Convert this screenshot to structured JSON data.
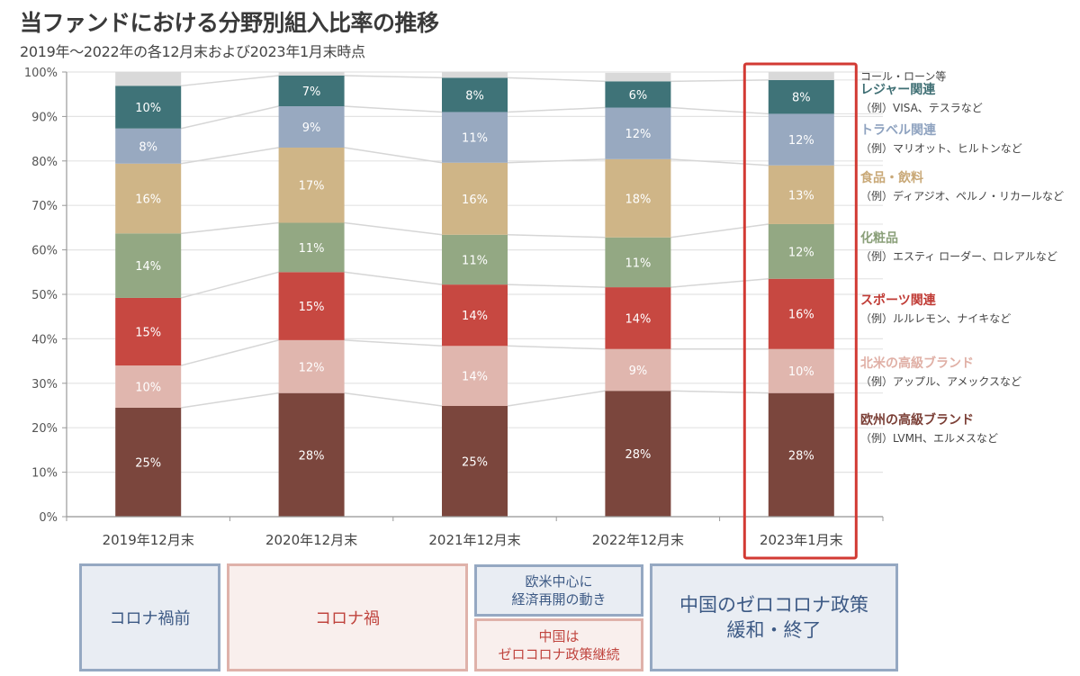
{
  "header": {
    "title": "当ファンドにおける分野別組入比率の推移",
    "subtitle": "2019年～2022年の各12月末および2023年1月末時点"
  },
  "chart_data": {
    "type": "bar",
    "stacked": true,
    "title": "当ファンドにおける分野別組入比率の推移",
    "subtitle": "2019年～2022年の各12月末および2023年1月末時点",
    "xlabel": "",
    "ylabel": "",
    "ylim": [
      0,
      100
    ],
    "yticks": [
      "0%",
      "10%",
      "20%",
      "30%",
      "40%",
      "50%",
      "60%",
      "70%",
      "80%",
      "90%",
      "100%"
    ],
    "grid": true,
    "categories": [
      "2019年12月末",
      "2020年12月末",
      "2021年12月末",
      "2022年12月末",
      "2023年1月末"
    ],
    "highlighted_category": "2023年1月末",
    "series": [
      {
        "name": "欧州の高級ブランド",
        "color": "#7b463d",
        "values": [
          24.5,
          27.8,
          24.9,
          28.3,
          27.8
        ],
        "labels": [
          "25%",
          "28%",
          "25%",
          "28%",
          "28%"
        ]
      },
      {
        "name": "北米の高級ブランド",
        "color": "#e0b6ae",
        "values": [
          9.5,
          11.9,
          13.5,
          9.4,
          9.9
        ],
        "labels": [
          "10%",
          "12%",
          "14%",
          "9%",
          "10%"
        ]
      },
      {
        "name": "スポーツ関連",
        "color": "#c74841",
        "values": [
          15.2,
          15.3,
          13.8,
          13.9,
          15.8
        ],
        "labels": [
          "15%",
          "15%",
          "14%",
          "14%",
          "16%"
        ]
      },
      {
        "name": "化粧品",
        "color": "#93a883",
        "values": [
          14.5,
          11.1,
          11.2,
          11.2,
          12.3
        ],
        "labels": [
          "14%",
          "11%",
          "11%",
          "11%",
          "12%"
        ]
      },
      {
        "name": "食品・飲料",
        "color": "#cfb587",
        "values": [
          15.7,
          16.9,
          16.2,
          17.6,
          13.2
        ],
        "labels": [
          "16%",
          "17%",
          "16%",
          "18%",
          "13%"
        ]
      },
      {
        "name": "トラベル関連",
        "color": "#98a9c0",
        "values": [
          7.9,
          9.3,
          11.4,
          11.6,
          11.6
        ],
        "labels": [
          "8%",
          "9%",
          "11%",
          "12%",
          "12%"
        ]
      },
      {
        "name": "レジャー関連",
        "color": "#3f7378",
        "values": [
          9.6,
          6.9,
          7.7,
          5.9,
          7.6
        ],
        "labels": [
          "10%",
          "7%",
          "8%",
          "6%",
          "8%"
        ]
      },
      {
        "name": "コール・ローン等",
        "color": "#d9d9d9",
        "values": [
          3.1,
          0.8,
          1.3,
          1.9,
          1.8
        ],
        "labels": [
          "",
          "",
          "",
          "",
          ""
        ]
      }
    ],
    "legend_placement": "right"
  },
  "legend": [
    {
      "name": "コール・ローン等",
      "example": "",
      "color": "#555555"
    },
    {
      "name": "レジャー関連",
      "example": "（例）VISA、テスラなど",
      "color": "#3f6f74"
    },
    {
      "name": "トラベル関連",
      "example": "（例）マリオット、ヒルトンなど",
      "color": "#8fa3c0"
    },
    {
      "name": "食品・飲料",
      "example": "（例）ディアジオ、ペルノ・リカールなど",
      "color": "#c9a978"
    },
    {
      "name": "化粧品",
      "example": "（例）エスティ ローダー、ロレアルなど",
      "color": "#8ba07a"
    },
    {
      "name": "スポーツ関連",
      "example": "（例）ルルレモン、ナイキなど",
      "color": "#c03b35"
    },
    {
      "name": "北米の高級ブランド",
      "example": "（例）アップル、アメックスなど",
      "color": "#e0b0a6"
    },
    {
      "name": "欧州の高級ブランド",
      "example": "（例）LVMH、エルメスなど",
      "color": "#7b3f36"
    }
  ],
  "periods": [
    {
      "label": "コロナ禍前",
      "style": "blue"
    },
    {
      "label": "コロナ禍",
      "style": "pink"
    },
    {
      "label": "欧米中心に\n経済再開の動き",
      "style": "blue"
    },
    {
      "label": "中国は\nゼロコロナ政策継続",
      "style": "pink"
    },
    {
      "label": "中国のゼロコロナ政策\n緩和・終了",
      "style": "blue"
    }
  ]
}
